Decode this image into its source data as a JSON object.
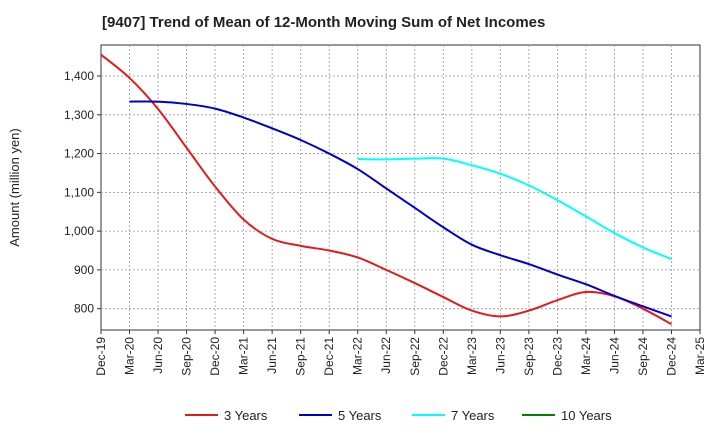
{
  "chart_data": {
    "type": "line",
    "title": "[9407]  Trend of Mean of 12-Month Moving Sum of Net Incomes",
    "ylabel": "Amount (million yen)",
    "xlabel": "",
    "categories": [
      "Dec-19",
      "Mar-20",
      "Jun-20",
      "Sep-20",
      "Dec-20",
      "Mar-21",
      "Jun-21",
      "Sep-21",
      "Dec-21",
      "Mar-22",
      "Jun-22",
      "Sep-22",
      "Dec-22",
      "Mar-23",
      "Jun-23",
      "Sep-23",
      "Dec-23",
      "Mar-24",
      "Jun-24",
      "Sep-24",
      "Dec-24",
      "Mar-25"
    ],
    "yticks": [
      800,
      900,
      1000,
      1100,
      1200,
      1300,
      1400
    ],
    "ytick_labels": [
      "800",
      "900",
      "1,000",
      "1,100",
      "1,200",
      "1,300",
      "1,400"
    ],
    "ylim": [
      745,
      1480
    ],
    "grid": true,
    "legend_position": "bottom",
    "series": [
      {
        "name": "3 Years",
        "color": "#e31a1c",
        "values": [
          1455,
          1395,
          1315,
          1215,
          1115,
          1030,
          980,
          962,
          950,
          932,
          900,
          866,
          830,
          795,
          780,
          795,
          822,
          843,
          832,
          800,
          760,
          null
        ]
      },
      {
        "name": "5 Years",
        "color": "#0000cc",
        "values": [
          null,
          1334,
          1334,
          1328,
          1316,
          1293,
          1265,
          1235,
          1200,
          1160,
          1110,
          1060,
          1010,
          965,
          938,
          915,
          888,
          863,
          833,
          806,
          780,
          null
        ]
      },
      {
        "name": "7 Years",
        "color": "#00ffff",
        "values": [
          null,
          null,
          null,
          null,
          null,
          null,
          null,
          null,
          null,
          1186,
          1185,
          1187,
          1187,
          1170,
          1148,
          1118,
          1080,
          1038,
          995,
          958,
          928,
          null
        ]
      },
      {
        "name": "10 Years",
        "color": "#008000",
        "values": [
          null,
          null,
          null,
          null,
          null,
          null,
          null,
          null,
          null,
          null,
          null,
          null,
          null,
          null,
          null,
          null,
          null,
          null,
          null,
          null,
          null,
          null
        ]
      }
    ]
  }
}
